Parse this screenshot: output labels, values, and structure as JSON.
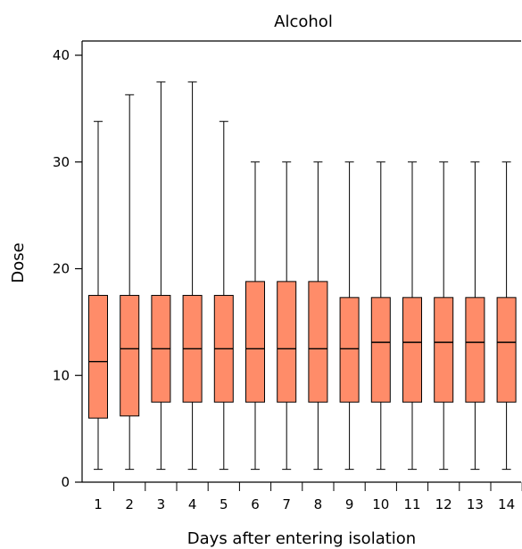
{
  "chart_data": {
    "type": "boxplot",
    "title": "Alcohol",
    "xlabel": "Days after entering isolation",
    "ylabel": "Dose",
    "ylim": [
      0,
      41
    ],
    "yticks": [
      0,
      10,
      20,
      30,
      40
    ],
    "categories": [
      "1",
      "2",
      "3",
      "4",
      "5",
      "6",
      "7",
      "8",
      "9",
      "10",
      "11",
      "12",
      "13",
      "14"
    ],
    "box_color": "#FF8C69",
    "boxes": [
      {
        "min": 1.2,
        "q1": 6.0,
        "median": 11.3,
        "q3": 17.5,
        "max": 33.8
      },
      {
        "min": 1.2,
        "q1": 6.2,
        "median": 12.5,
        "q3": 17.5,
        "max": 36.3
      },
      {
        "min": 1.2,
        "q1": 7.5,
        "median": 12.5,
        "q3": 17.5,
        "max": 37.5
      },
      {
        "min": 1.2,
        "q1": 7.5,
        "median": 12.5,
        "q3": 17.5,
        "max": 37.5
      },
      {
        "min": 1.2,
        "q1": 7.5,
        "median": 12.5,
        "q3": 17.5,
        "max": 33.8
      },
      {
        "min": 1.2,
        "q1": 7.5,
        "median": 12.5,
        "q3": 18.8,
        "max": 30.0
      },
      {
        "min": 1.2,
        "q1": 7.5,
        "median": 12.5,
        "q3": 18.8,
        "max": 30.0
      },
      {
        "min": 1.2,
        "q1": 7.5,
        "median": 12.5,
        "q3": 18.8,
        "max": 30.0
      },
      {
        "min": 1.2,
        "q1": 7.5,
        "median": 12.5,
        "q3": 17.3,
        "max": 30.0
      },
      {
        "min": 1.2,
        "q1": 7.5,
        "median": 13.1,
        "q3": 17.3,
        "max": 30.0
      },
      {
        "min": 1.2,
        "q1": 7.5,
        "median": 13.1,
        "q3": 17.3,
        "max": 30.0
      },
      {
        "min": 1.2,
        "q1": 7.5,
        "median": 13.1,
        "q3": 17.3,
        "max": 30.0
      },
      {
        "min": 1.2,
        "q1": 7.5,
        "median": 13.1,
        "q3": 17.3,
        "max": 30.0
      },
      {
        "min": 1.2,
        "q1": 7.5,
        "median": 13.1,
        "q3": 17.3,
        "max": 30.0
      }
    ]
  }
}
